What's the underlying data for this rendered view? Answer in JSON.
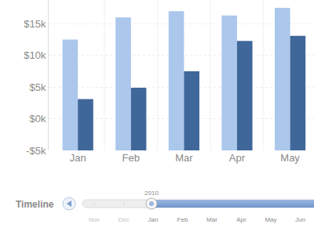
{
  "chart_data": {
    "type": "bar",
    "categories": [
      "Jan",
      "Feb",
      "Mar",
      "Apr",
      "May"
    ],
    "series": [
      {
        "color": "#abc7ec",
        "values": [
          12.5,
          16,
          17,
          16.3,
          17.5
        ]
      },
      {
        "color": "#40679a",
        "values": [
          3.1,
          4.9,
          7.5,
          12.3,
          13.1
        ]
      }
    ],
    "ylim": [
      -5,
      18.75
    ],
    "yticks": [
      {
        "value": -5,
        "label": "-$5k"
      },
      {
        "value": 0,
        "label": "$0k"
      },
      {
        "value": 5,
        "label": "$5k"
      },
      {
        "value": 10,
        "label": "$10k"
      },
      {
        "value": 15,
        "label": "$15k"
      }
    ],
    "grid": true
  },
  "timeline": {
    "label": "Timeline",
    "year": "2010",
    "months": [
      "Nov",
      "Dec",
      "Jan",
      "Feb",
      "Mar",
      "Apr",
      "May",
      "Jun"
    ]
  }
}
